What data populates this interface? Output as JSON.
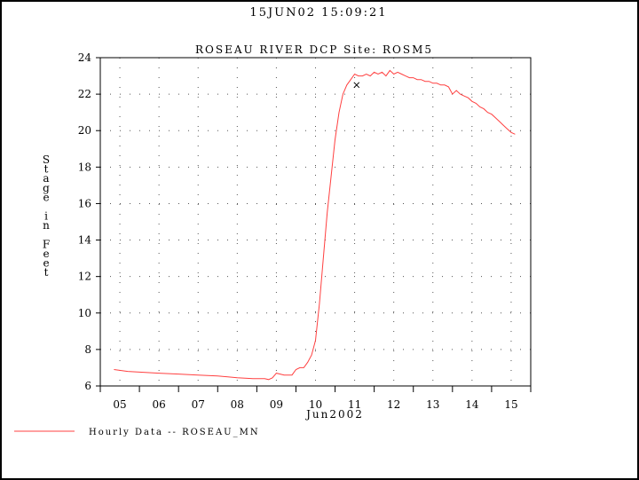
{
  "header": {
    "timestamp": "15JUN02   15:09:21"
  },
  "chart_data": {
    "type": "line",
    "title": "ROSEAU RIVER DCP Site:  ROSM5",
    "ylabel": "Stage in Feet",
    "xlabel": "Jun2002",
    "xlim": [
      4.5,
      15.5
    ],
    "ylim": [
      6,
      24
    ],
    "yticks": [
      6,
      8,
      10,
      12,
      14,
      16,
      18,
      20,
      22,
      24
    ],
    "xtick_labels": [
      "05",
      "06",
      "07",
      "08",
      "09",
      "10",
      "11",
      "12",
      "13",
      "14",
      "15"
    ],
    "grid": true,
    "legend": "bottom-left",
    "line_color": "#ff4040",
    "marker": {
      "x": 11.05,
      "y": 22.5,
      "symbol": "x"
    },
    "series": [
      {
        "name": "Hourly Data -- ROSEAU_MN",
        "x": [
          4.85,
          5.2,
          5.6,
          6.0,
          6.5,
          7.0,
          7.5,
          8.0,
          8.4,
          8.7,
          8.8,
          8.9,
          9.0,
          9.2,
          9.4,
          9.5,
          9.6,
          9.7,
          9.8,
          9.9,
          10.0,
          10.1,
          10.2,
          10.3,
          10.4,
          10.5,
          10.6,
          10.7,
          10.8,
          10.9,
          11.0,
          11.1,
          11.2,
          11.3,
          11.4,
          11.5,
          11.6,
          11.7,
          11.8,
          11.9,
          12.0,
          12.1,
          12.2,
          12.3,
          12.4,
          12.5,
          12.6,
          12.7,
          12.8,
          12.9,
          13.0,
          13.1,
          13.2,
          13.3,
          13.4,
          13.5,
          13.6,
          13.7,
          13.8,
          13.9,
          14.0,
          14.1,
          14.2,
          14.3,
          14.4,
          14.5,
          14.6,
          14.7,
          14.8,
          14.9,
          15.0,
          15.1
        ],
        "y": [
          6.9,
          6.8,
          6.75,
          6.7,
          6.65,
          6.6,
          6.55,
          6.45,
          6.4,
          6.4,
          6.35,
          6.45,
          6.7,
          6.6,
          6.6,
          6.9,
          7.0,
          7.0,
          7.3,
          7.7,
          8.5,
          10.5,
          13.0,
          15.5,
          17.5,
          19.5,
          21.0,
          22.0,
          22.5,
          22.8,
          23.1,
          23.0,
          23.0,
          23.1,
          23.0,
          23.2,
          23.1,
          23.2,
          23.0,
          23.3,
          23.1,
          23.2,
          23.1,
          23.0,
          22.9,
          22.9,
          22.8,
          22.8,
          22.7,
          22.7,
          22.6,
          22.6,
          22.5,
          22.5,
          22.4,
          22.0,
          22.2,
          22.0,
          21.9,
          21.8,
          21.6,
          21.5,
          21.3,
          21.2,
          21.0,
          20.9,
          20.7,
          20.5,
          20.3,
          20.1,
          19.9,
          19.8
        ]
      }
    ]
  }
}
